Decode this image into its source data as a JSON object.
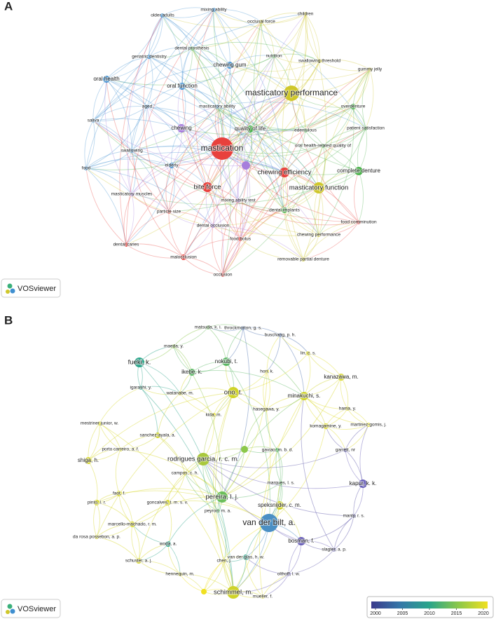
{
  "panels": [
    {
      "label": "A",
      "logo": "VOSviewer",
      "nodes": [
        {
          "label": "mastication",
          "color": "#e8413c"
        },
        {
          "label": "masticatory performance",
          "color": "#cfc72a"
        },
        {
          "label": "older adults",
          "color": "#3f8fd0"
        },
        {
          "label": "mixing ability",
          "color": "#3f8fd0"
        },
        {
          "label": "occlusal force",
          "color": "#cfc72a"
        },
        {
          "label": "children",
          "color": "#cfc72a"
        },
        {
          "label": "dental prosthesis",
          "color": "#4db34d"
        },
        {
          "label": "nutrition",
          "color": "#4db34d"
        },
        {
          "label": "swallowing threshold",
          "color": "#cfc72a"
        },
        {
          "label": "geriatric dentistry",
          "color": "#3f8fd0"
        },
        {
          "label": "chewing gum",
          "color": "#3f8fd0"
        },
        {
          "label": "gummy jelly",
          "color": "#cfc72a"
        },
        {
          "label": "oral health",
          "color": "#3f8fd0"
        },
        {
          "label": "oral function",
          "color": "#3f8fd0"
        },
        {
          "label": "aged",
          "color": "#3f8fd0"
        },
        {
          "label": "masticatory ability",
          "color": "#3f8fd0"
        },
        {
          "label": "overdenture",
          "color": "#4db34d"
        },
        {
          "label": "saliva",
          "color": "#3f8fd0"
        },
        {
          "label": "chewing",
          "color": "#a77ddc"
        },
        {
          "label": "quality of life",
          "color": "#4db34d"
        },
        {
          "label": "edentulous",
          "color": "#4db34d"
        },
        {
          "label": "patient satisfaction",
          "color": "#4db34d"
        },
        {
          "label": "oral health-related quality of",
          "color": "#4db34d"
        },
        {
          "label": "swallowing",
          "color": "#3f8fd0"
        },
        {
          "label": "elderly",
          "color": "#3f8fd0"
        },
        {
          "label": "chewing efficiency",
          "color": "#e8413c"
        },
        {
          "label": "complete denture",
          "color": "#4db34d"
        },
        {
          "label": "food",
          "color": "#3f8fd0"
        },
        {
          "label": "bite force",
          "color": "#e8413c"
        },
        {
          "label": "masticatory function",
          "color": "#cfc72a"
        },
        {
          "label": "masticatory muscles",
          "color": "#a77ddc"
        },
        {
          "label": "particle size",
          "color": "#e8413c"
        },
        {
          "label": "mixing ability test",
          "color": "#a77ddc"
        },
        {
          "label": "dental implants",
          "color": "#4db34d"
        },
        {
          "label": "food comminution",
          "color": "#e8413c"
        },
        {
          "label": "dental occlusion",
          "color": "#a77ddc"
        },
        {
          "label": "chewing performance",
          "color": "#cfc72a"
        },
        {
          "label": "dental caries",
          "color": "#e8413c"
        },
        {
          "label": "food bolus",
          "color": "#e8413c"
        },
        {
          "label": "malocclusion",
          "color": "#e8413c"
        },
        {
          "label": "removable partial denture",
          "color": "#cfc72a"
        },
        {
          "label": "occlusion",
          "color": "#e8413c"
        },
        {
          "label": null,
          "color": "#a77ddc"
        }
      ]
    },
    {
      "label": "B",
      "logo": "VOSviewer",
      "nodes": [
        {
          "label": "van der bilt, a.",
          "color": "#4a8fc4"
        },
        {
          "label": "rodrigues garcia, r. c. m.",
          "color": "#a9c83c"
        },
        {
          "label": "schimmel, m.",
          "color": "#cfd32a"
        },
        {
          "label": "matsuda, k. i.",
          "color": "#6cbf5a"
        },
        {
          "label": "throckmorton, g. s.",
          "color": "#4a6fb0"
        },
        {
          "label": "buschang, p. h.",
          "color": "#4a6fb0"
        },
        {
          "label": "maeda, y.",
          "color": "#8cc84a"
        },
        {
          "label": "lin, c. s.",
          "color": "#e0dc2a"
        },
        {
          "label": "fueki, k.",
          "color": "#2aa58a"
        },
        {
          "label": "nokubi, t.",
          "color": "#5bb865"
        },
        {
          "label": "ikebe, k.",
          "color": "#5bb865"
        },
        {
          "label": "hori, k.",
          "color": "#e0dc2a"
        },
        {
          "label": "kanazawa, m.",
          "color": "#d8d829"
        },
        {
          "label": "igarashi, y.",
          "color": "#2aa58a"
        },
        {
          "label": "watanabe, m.",
          "color": "#d8d829"
        },
        {
          "label": "ono, t.",
          "color": "#cfd32a"
        },
        {
          "label": "minakuchi, s.",
          "color": "#cfd32a"
        },
        {
          "label": "hasegawa, y.",
          "color": "#e0dc2a"
        },
        {
          "label": "hama, y.",
          "color": "#e0dc2a"
        },
        {
          "label": "kida, m.",
          "color": "#e0dc2a"
        },
        {
          "label": "komagamine, y.",
          "color": "#e0dc2a"
        },
        {
          "label": "mestriner junior, w.",
          "color": "#d8d829"
        },
        {
          "label": "sanchez-ayala, a.",
          "color": "#cfd32a"
        },
        {
          "label": "martinez-gomis, j.",
          "color": "#e0dc2a"
        },
        {
          "label": "porto carreiro, a. f.",
          "color": "#d8d829"
        },
        {
          "label": "gaviao, m. b. d.",
          "color": "#5bb865"
        },
        {
          "label": "shiga, h.",
          "color": "#d8d829"
        },
        {
          "label": "garrett, nr",
          "color": "#5a55a8"
        },
        {
          "label": "campos, c. h.",
          "color": "#d8d829"
        },
        {
          "label": "marques, l. s.",
          "color": "#5bb865"
        },
        {
          "label": "kapur, k. k.",
          "color": "#6a60b8"
        },
        {
          "label": "faot, f.",
          "color": "#d8d829"
        },
        {
          "label": "pereira, l. j.",
          "color": "#6cbf5a"
        },
        {
          "label": "pinto, l. r.",
          "color": "#d8d829"
        },
        {
          "label": "goncalves, t. m. s. v.",
          "color": "#d8d829"
        },
        {
          "label": "speksnijder, c. m.",
          "color": "#cfd32a"
        },
        {
          "label": "manly, r. s.",
          "color": "#5a55a8"
        },
        {
          "label": "marcello-machado, r. m.",
          "color": "#d8d829"
        },
        {
          "label": "peyron, m. a.",
          "color": "#5bb865"
        },
        {
          "label": "da rosa possebon, a. p.",
          "color": "#d8d829"
        },
        {
          "label": "bosman, f.",
          "color": "#6a60b8"
        },
        {
          "label": "slagter, a. p.",
          "color": "#5a55a8"
        },
        {
          "label": "woda, a.",
          "color": "#2aa58a"
        },
        {
          "label": "van der glas, h. w.",
          "color": "#2aa58a"
        },
        {
          "label": "chen, j.",
          "color": "#d8d829"
        },
        {
          "label": "schuster, a. j.",
          "color": "#d8d829"
        },
        {
          "label": "olthoff, l. w.",
          "color": "#6a60b8"
        },
        {
          "label": "hennequin, m.",
          "color": "#d8d829"
        },
        {
          "label": "mueller, f.",
          "color": "#e0dc2a"
        },
        {
          "label": null,
          "color": "#8cc84a"
        },
        {
          "label": null,
          "color": "#f0e020"
        }
      ],
      "colorbar": {
        "ticks": [
          2000,
          2005,
          2010,
          2015,
          2020
        ],
        "colors": [
          "#3b3a8c",
          "#3578a8",
          "#2aa58a",
          "#8cc84a",
          "#f0e020"
        ]
      }
    }
  ]
}
